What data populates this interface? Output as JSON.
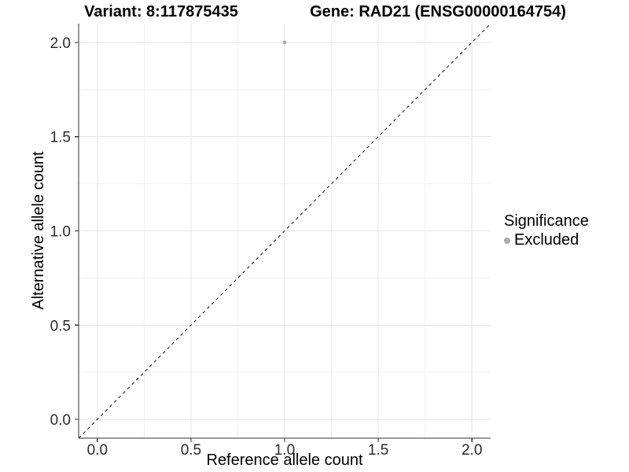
{
  "header": {
    "title_left": "Variant: 8:117875435",
    "title_right": "Gene: RAD21 (ENSG00000164754)"
  },
  "legend": {
    "title": "Significance",
    "items": [
      {
        "label": "Excluded",
        "color": "#ACACAC"
      }
    ]
  },
  "chart_data": {
    "type": "scatter",
    "xlabel": "Reference allele count",
    "ylabel": "Alternative allele count",
    "xlim": [
      -0.1,
      2.1
    ],
    "ylim": [
      -0.1,
      2.1
    ],
    "x_ticks": [
      0.0,
      0.5,
      1.0,
      1.5,
      2.0
    ],
    "y_ticks": [
      0.0,
      0.5,
      1.0,
      1.5,
      2.0
    ],
    "x_minor_ticks": [
      0.25,
      0.75,
      1.25,
      1.75
    ],
    "y_minor_ticks": [
      0.25,
      0.75,
      1.25,
      1.75
    ],
    "tick_decimals": 1,
    "grid": true,
    "legend_position": "right",
    "identity_line": {
      "slope": 1,
      "intercept": 0,
      "style": "dashed"
    },
    "series": [
      {
        "name": "Excluded",
        "color": "#ACACAC",
        "points": [
          {
            "x": 1.0,
            "y": 2.0
          }
        ]
      }
    ],
    "colors": {
      "major_grid": "#E6E6E6",
      "minor_grid": "#F2F2F2",
      "axis_line": "#333333",
      "tick_mark": "#333333",
      "tick_label": "#2B2B2B",
      "identity_line": "#141414"
    }
  }
}
